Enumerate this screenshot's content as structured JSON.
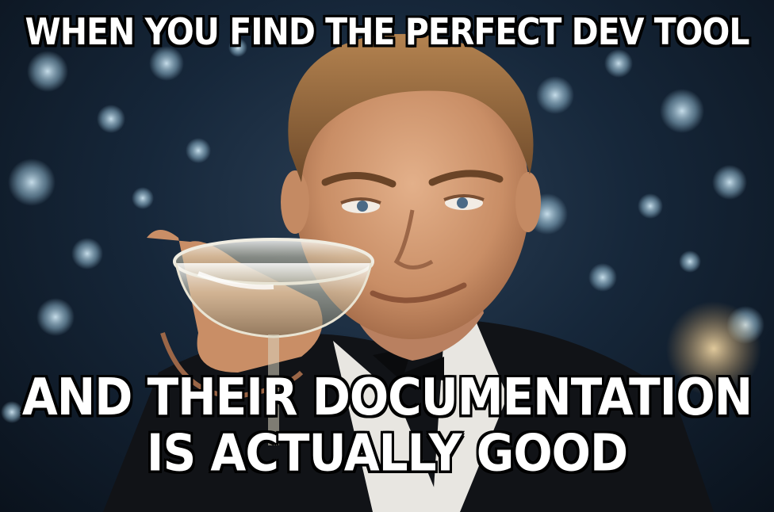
{
  "meme": {
    "top_text": "WHEN YOU FIND THE PERFECT DEV TOOL",
    "bottom_text_line1": "AND THEIR DOCUMENTATION",
    "bottom_text_line2": "IS ACTUALLY GOOD"
  },
  "image": {
    "icon": "man-raising-champagne-glass-toast",
    "background": "bokeh-fireworks-party-lights",
    "colors": {
      "text": "#ffffff",
      "text_outline": "#000000",
      "background_dark": "#0c1520",
      "bokeh": "#9fc6dc",
      "skin": "#d9a27c",
      "hair": "#8a5f36",
      "tuxedo": "#101216",
      "shirt": "#e8e6e1"
    }
  }
}
